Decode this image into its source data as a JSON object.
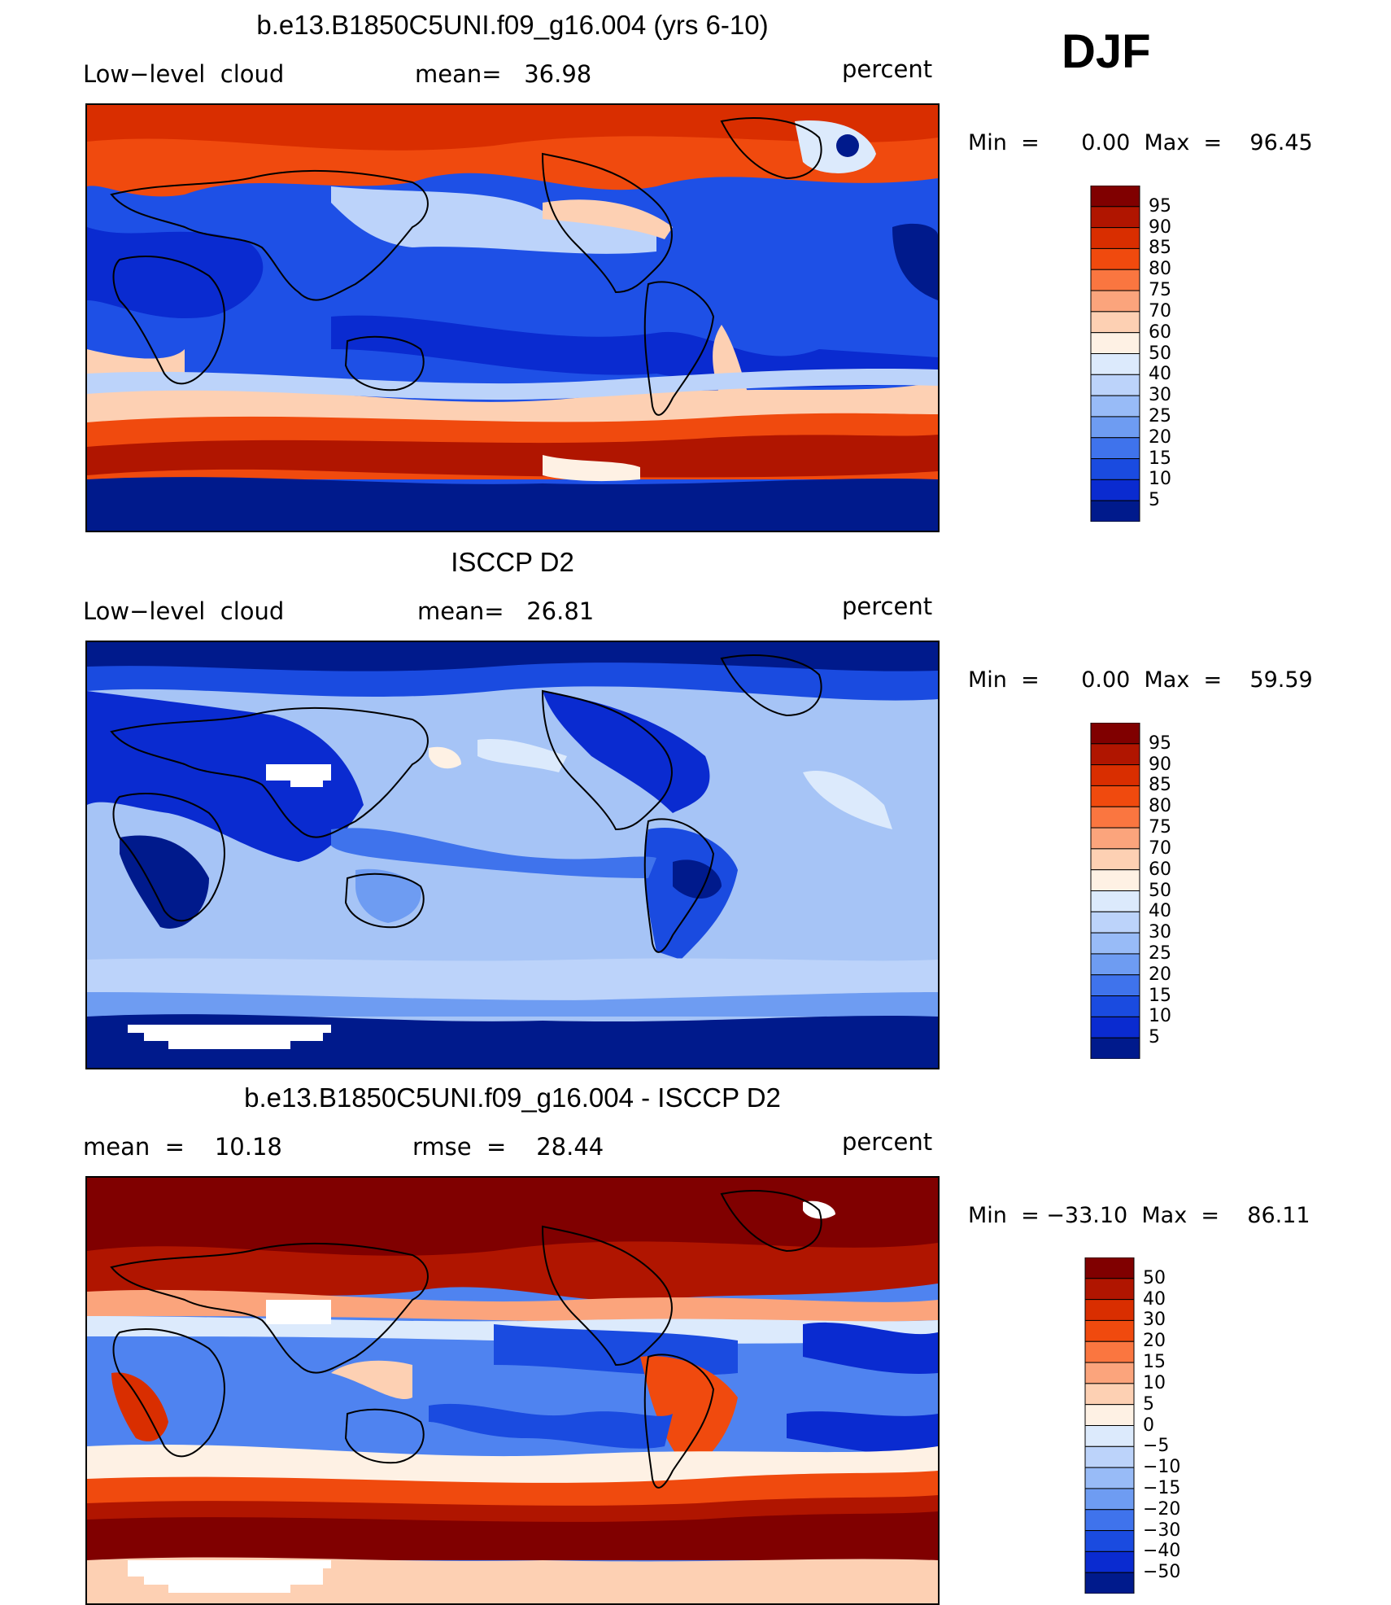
{
  "season": "DJF",
  "panels": [
    {
      "title": "b.e13.B1850C5UNI.f09_g16.004 (yrs 6-10)",
      "left_label": "Low−level  cloud",
      "center_label": "mean=   36.98",
      "units": "percent",
      "minmax": "Min  =      0.00  Max  =    96.45",
      "colors": {
        "ocean_base": "#1e50e6",
        "land_base": "#0a2bd0"
      }
    },
    {
      "title": "ISCCP D2",
      "left_label": "Low−level  cloud",
      "center_label": "mean=   26.81",
      "units": "percent",
      "minmax": "Min  =      0.00  Max  =    59.59",
      "colors": {
        "ocean_base": "#a6c4f6",
        "land_base": "#0a2bd0"
      }
    },
    {
      "title": "b.e13.B1850C5UNI.f09_g16.004 - ISCCP D2",
      "left_label": "mean  =    10.18",
      "center_label": "rmse  =    28.44",
      "units": "percent",
      "minmax": "Min  = −33.10  Max  =    86.11",
      "colors": {
        "ocean_base": "#4f83f0",
        "land_base": "#fbd4bd"
      }
    }
  ],
  "colorbar_abs": {
    "labels": [
      "95",
      "90",
      "85",
      "80",
      "75",
      "70",
      "60",
      "50",
      "40",
      "30",
      "25",
      "20",
      "15",
      "10",
      "5"
    ],
    "colors": [
      "#800000",
      "#b01500",
      "#d92e00",
      "#f04a0e",
      "#fa7640",
      "#fba47c",
      "#fdd0b3",
      "#fef1e4",
      "#dceafc",
      "#bcd3fa",
      "#98bbf7",
      "#6e9cf2",
      "#3f73ec",
      "#1a4be0",
      "#0a2bd0",
      "#001a8c"
    ]
  },
  "colorbar_diff": {
    "labels": [
      "50",
      "40",
      "30",
      "20",
      "15",
      "10",
      "5",
      "0",
      "−5",
      "−10",
      "−15",
      "−20",
      "−30",
      "−40",
      "−50"
    ],
    "colors": [
      "#800000",
      "#b01500",
      "#d92e00",
      "#f04a0e",
      "#fa7640",
      "#fba47c",
      "#fdd0b3",
      "#fef1e4",
      "#dceafc",
      "#bcd3fa",
      "#98bbf7",
      "#6e9cf2",
      "#3f73ec",
      "#1a4be0",
      "#0a2bd0",
      "#001a8c"
    ]
  }
}
